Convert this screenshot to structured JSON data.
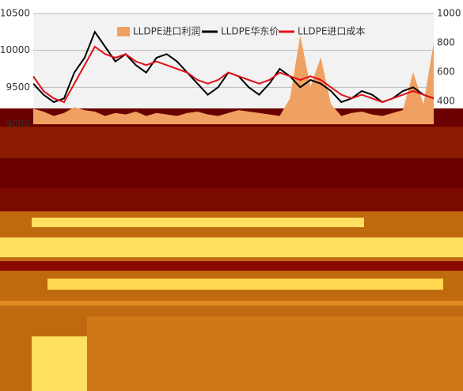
{
  "chart_data": {
    "type": "line",
    "legend": "top",
    "ylim": [
      9000,
      10500
    ],
    "yticks": [
      9000,
      9500,
      10000,
      10500
    ],
    "y2lim": [
      400,
      1000
    ],
    "y2ticks": [
      400,
      600,
      800,
      1000
    ],
    "grid": true,
    "series": [
      {
        "name": "LLDPE进口利润",
        "color": "#f0a060",
        "axis": "y2",
        "style": "area",
        "values": [
          350,
          330,
          300,
          320,
          360,
          340,
          330,
          300,
          320,
          310,
          330,
          300,
          320,
          310,
          300,
          320,
          330,
          310,
          300,
          320,
          340,
          330,
          320,
          310,
          300,
          420,
          850,
          500,
          700,
          380,
          300,
          320,
          330,
          310,
          300,
          320,
          340,
          600,
          380,
          800
        ]
      },
      {
        "name": "LLDPE华东价",
        "color": "#000000",
        "values": [
          9550,
          9400,
          9300,
          9350,
          9700,
          9900,
          10250,
          10050,
          9850,
          9950,
          9800,
          9700,
          9900,
          9950,
          9850,
          9700,
          9550,
          9400,
          9500,
          9700,
          9650,
          9500,
          9400,
          9550,
          9750,
          9650,
          9500,
          9600,
          9550,
          9450,
          9300,
          9350,
          9450,
          9400,
          9300,
          9350,
          9450,
          9500,
          9400,
          9350
        ]
      },
      {
        "name": "LLDPE进口成本",
        "color": "#e0101a",
        "values": [
          9650,
          9450,
          9350,
          9300,
          9550,
          9800,
          10050,
          9950,
          9900,
          9950,
          9850,
          9800,
          9850,
          9800,
          9750,
          9700,
          9600,
          9550,
          9600,
          9700,
          9650,
          9600,
          9550,
          9600,
          9700,
          9650,
          9600,
          9650,
          9600,
          9500,
          9400,
          9350,
          9400,
          9350,
          9300,
          9350,
          9400,
          9450,
          9400,
          9350
        ]
      }
    ]
  }
}
